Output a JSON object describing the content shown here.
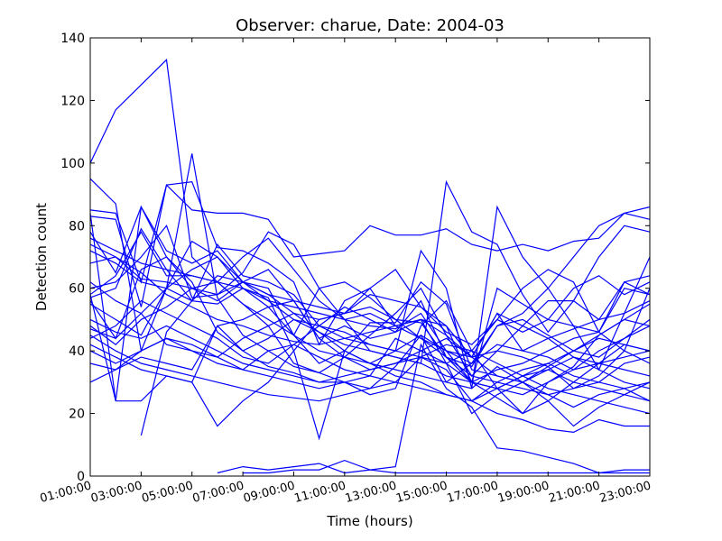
{
  "chart_data": {
    "type": "line",
    "title": "Observer: charue, Date: 2004-03",
    "xlabel": "Time (hours)",
    "ylabel": "Detection count",
    "ylim": [
      0,
      140
    ],
    "yticks": [
      0,
      20,
      40,
      60,
      80,
      100,
      120,
      140
    ],
    "xlim": [
      1,
      23
    ],
    "xticks": [
      "01:00:00",
      "03:00:00",
      "05:00:00",
      "07:00:00",
      "09:00:00",
      "11:00:00",
      "13:00:00",
      "15:00:00",
      "17:00:00",
      "19:00:00",
      "21:00:00",
      "23:00:00"
    ],
    "grid": false,
    "legend": "none",
    "line_color": "#0000ff",
    "hours": [
      1,
      2,
      3,
      4,
      5,
      6,
      7,
      8,
      9,
      10,
      11,
      12,
      13,
      14,
      15,
      16,
      17,
      18,
      19,
      20,
      21,
      22,
      23
    ],
    "series": [
      {
        "values": [
          100,
          117,
          125,
          133,
          70,
          62,
          55,
          48,
          36,
          33,
          38,
          45,
          52,
          60,
          45,
          32,
          40,
          38,
          35,
          28,
          32,
          40,
          60
        ]
      },
      {
        "values": [
          95,
          87,
          40,
          60,
          103,
          57,
          45,
          40,
          35,
          33,
          30,
          28,
          35,
          45,
          40,
          30,
          25,
          20,
          30,
          35,
          45,
          50,
          48
        ]
      },
      {
        "values": [
          85,
          84,
          62,
          93,
          94,
          73,
          72,
          68,
          62,
          42,
          56,
          60,
          48,
          50,
          45,
          38,
          52,
          40,
          44,
          47,
          50,
          52,
          70
        ]
      },
      {
        "values": [
          84,
          24,
          86,
          72,
          68,
          72,
          62,
          60,
          45,
          36,
          40,
          49,
          49,
          62,
          55,
          34,
          32,
          30,
          26,
          28,
          30,
          36,
          38
        ]
      },
      {
        "values": [
          83,
          82,
          54,
          93,
          85,
          84,
          84,
          82,
          70,
          71,
          72,
          80,
          77,
          77,
          79,
          74,
          72,
          74,
          72,
          75,
          76,
          84,
          86
        ]
      },
      {
        "values": [
          78,
          65,
          86,
          70,
          60,
          62,
          55,
          50,
          45,
          40,
          38,
          36,
          40,
          45,
          30,
          28,
          35,
          30,
          35,
          40,
          45,
          50,
          55
        ]
      },
      {
        "values": [
          76,
          72,
          68,
          66,
          64,
          62,
          60,
          56,
          54,
          52,
          50,
          48,
          47,
          52,
          40,
          36,
          48,
          50,
          45,
          40,
          38,
          44,
          50
        ]
      },
      {
        "values": [
          74,
          70,
          65,
          58,
          54,
          50,
          48,
          45,
          43,
          42,
          44,
          46,
          48,
          50,
          48,
          30,
          60,
          55,
          50,
          48,
          46,
          62,
          58
        ]
      },
      {
        "values": [
          68,
          70,
          63,
          62,
          60,
          58,
          62,
          58,
          52,
          50,
          52,
          54,
          50,
          49,
          38,
          35,
          48,
          52,
          60,
          70,
          80,
          84,
          82
        ]
      },
      {
        "values": [
          62,
          56,
          52,
          60,
          56,
          64,
          62,
          66,
          56,
          44,
          48,
          44,
          46,
          56,
          38,
          30,
          34,
          36,
          40,
          44,
          46,
          60,
          58
        ]
      },
      {
        "values": [
          60,
          62,
          70,
          80,
          57,
          58,
          65,
          78,
          74,
          60,
          62,
          57,
          50,
          44,
          40,
          38,
          40,
          48,
          56,
          56,
          50,
          62,
          64
        ]
      },
      {
        "values": [
          58,
          64,
          78,
          64,
          64,
          62,
          70,
          76,
          66,
          56,
          50,
          52,
          48,
          44,
          38,
          32,
          30,
          34,
          36,
          32,
          30,
          28,
          24
        ]
      },
      {
        "values": [
          57,
          60,
          79,
          66,
          56,
          74,
          64,
          62,
          58,
          48,
          44,
          42,
          40,
          38,
          36,
          30,
          28,
          26,
          30,
          34,
          40,
          44,
          48
        ]
      },
      {
        "values": [
          55,
          50,
          45,
          60,
          75,
          70,
          62,
          56,
          50,
          46,
          42,
          40,
          38,
          36,
          32,
          30,
          28,
          32,
          36,
          40,
          44,
          42,
          40
        ]
      },
      {
        "values": [
          50,
          46,
          44,
          48,
          44,
          40,
          36,
          34,
          32,
          30,
          32,
          34,
          36,
          40,
          44,
          38,
          52,
          48,
          44,
          38,
          34,
          30,
          28
        ]
      },
      {
        "values": [
          47,
          44,
          52,
          42,
          40,
          38,
          44,
          48,
          52,
          46,
          40,
          36,
          34,
          32,
          30,
          36,
          42,
          40,
          38,
          34,
          36,
          38,
          40
        ]
      },
      {
        "values": [
          45,
          40,
          36,
          34,
          32,
          30,
          28,
          26,
          25,
          24,
          26,
          28,
          30,
          38,
          34,
          24,
          30,
          28,
          26,
          22,
          26,
          28,
          30
        ]
      },
      {
        "values": [
          42,
          38,
          34,
          32,
          30,
          48,
          40,
          35,
          33,
          30,
          30,
          26,
          28,
          48,
          56,
          40,
          28,
          20,
          24,
          30,
          36,
          42,
          40
        ]
      },
      {
        "values": [
          40,
          36,
          40,
          44,
          42,
          38,
          34,
          32,
          30,
          28,
          30,
          32,
          30,
          28,
          26,
          24,
          28,
          32,
          34,
          30,
          28,
          26,
          30
        ]
      },
      {
        "values": [
          36,
          34,
          38,
          36,
          34,
          48,
          50,
          54,
          56,
          44,
          38,
          34,
          36,
          38,
          42,
          40,
          36,
          32,
          28,
          26,
          24,
          22,
          20
        ]
      },
      {
        "values": [
          30,
          34,
          40,
          44,
          40,
          36,
          34,
          40,
          42,
          38,
          34,
          32,
          44,
          40,
          36,
          20,
          26,
          30,
          34,
          38,
          36,
          34,
          32
        ]
      },
      {
        "values": [
          58,
          24,
          24,
          32,
          30,
          16,
          24,
          30,
          40,
          50,
          52,
          58,
          56,
          54,
          48,
          38,
          32,
          30,
          24,
          16,
          22,
          26,
          24
        ]
      },
      {
        "values": [
          null,
          null,
          13,
          46,
          56,
          55,
          60,
          57,
          40,
          12,
          40,
          36,
          32,
          30,
          26,
          24,
          20,
          18,
          15,
          14,
          18,
          16,
          16
        ]
      },
      {
        "values": [
          null,
          null,
          null,
          null,
          null,
          1,
          3,
          2,
          3,
          4,
          1,
          2,
          3,
          42,
          28,
          22,
          9,
          8,
          6,
          4,
          1,
          2,
          2
        ]
      },
      {
        "values": [
          null,
          null,
          null,
          null,
          null,
          null,
          1,
          1,
          2,
          2,
          5,
          2,
          1,
          1,
          1,
          1,
          1,
          1,
          1,
          1,
          1,
          1,
          1
        ]
      },
      {
        "values": [
          72,
          68,
          62,
          60,
          66,
          70,
          60,
          54,
          45,
          60,
          50,
          40,
          38,
          36,
          94,
          78,
          74,
          58,
          46,
          56,
          70,
          80,
          78
        ]
      },
      {
        "values": [
          56,
          44,
          66,
          70,
          62,
          46,
          40,
          44,
          50,
          48,
          46,
          42,
          40,
          72,
          60,
          28,
          86,
          70,
          60,
          48,
          34,
          52,
          56
        ]
      },
      {
        "values": [
          48,
          42,
          50,
          54,
          60,
          56,
          62,
          58,
          56,
          54,
          52,
          60,
          66,
          54,
          46,
          42,
          50,
          46,
          50,
          60,
          64,
          58,
          62
        ]
      },
      {
        "values": [
          44,
          48,
          56,
          52,
          48,
          44,
          38,
          36,
          42,
          48,
          54,
          50,
          46,
          50,
          36,
          40,
          50,
          60,
          66,
          62,
          46,
          40,
          36
        ]
      }
    ]
  }
}
